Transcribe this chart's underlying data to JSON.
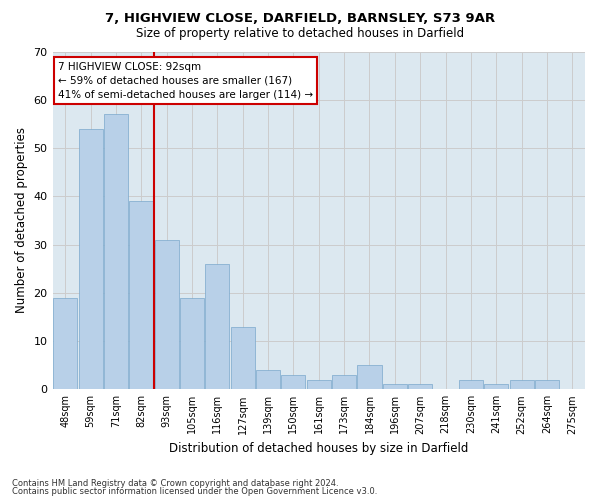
{
  "title1": "7, HIGHVIEW CLOSE, DARFIELD, BARNSLEY, S73 9AR",
  "title2": "Size of property relative to detached houses in Darfield",
  "xlabel": "Distribution of detached houses by size in Darfield",
  "ylabel": "Number of detached properties",
  "categories": [
    "48sqm",
    "59sqm",
    "71sqm",
    "82sqm",
    "93sqm",
    "105sqm",
    "116sqm",
    "127sqm",
    "139sqm",
    "150sqm",
    "161sqm",
    "173sqm",
    "184sqm",
    "196sqm",
    "207sqm",
    "218sqm",
    "230sqm",
    "241sqm",
    "252sqm",
    "264sqm",
    "275sqm"
  ],
  "values": [
    19,
    54,
    57,
    39,
    31,
    19,
    26,
    13,
    4,
    3,
    2,
    3,
    5,
    1,
    1,
    0,
    2,
    1,
    2,
    2,
    0
  ],
  "bar_color": "#b8d0e8",
  "bar_edge_color": "#7aa8cc",
  "annotation_text_line1": "7 HIGHVIEW CLOSE: 92sqm",
  "annotation_text_line2": "← 59% of detached houses are smaller (167)",
  "annotation_text_line3": "41% of semi-detached houses are larger (114) →",
  "annotation_box_color": "#ffffff",
  "annotation_box_edge_color": "#cc0000",
  "vline_color": "#cc0000",
  "vline_x": 3.5,
  "ylim": [
    0,
    70
  ],
  "yticks": [
    0,
    10,
    20,
    30,
    40,
    50,
    60,
    70
  ],
  "grid_color": "#cccccc",
  "bg_color": "#dce8f0",
  "footer1": "Contains HM Land Registry data © Crown copyright and database right 2024.",
  "footer2": "Contains public sector information licensed under the Open Government Licence v3.0."
}
